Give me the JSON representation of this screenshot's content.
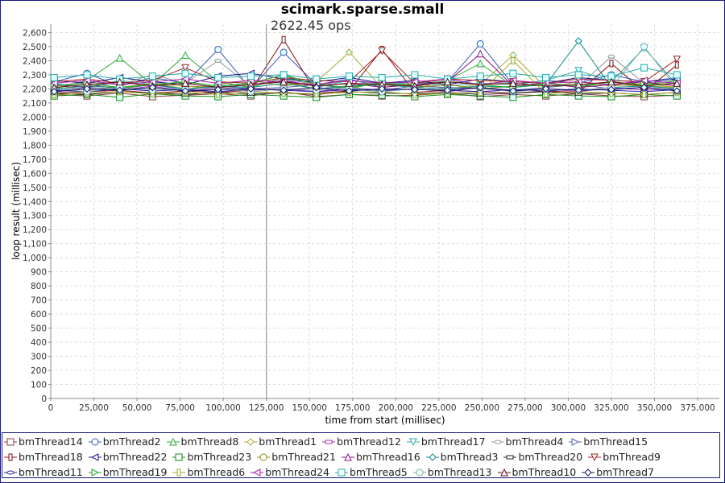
{
  "chart_data": {
    "type": "line",
    "title": "scimark.sparse.small",
    "xlabel": "time from start (millisec)",
    "ylabel": "loop result (millisec)",
    "xlim": [
      0,
      387600
    ],
    "ylim": [
      0,
      2660
    ],
    "xticks": [
      0,
      25000,
      50000,
      75000,
      100000,
      125000,
      150000,
      175000,
      200000,
      225000,
      250000,
      275000,
      300000,
      325000,
      350000,
      375000
    ],
    "yticks": [
      0,
      100,
      200,
      300,
      400,
      500,
      600,
      700,
      800,
      900,
      1000,
      1100,
      1200,
      1300,
      1400,
      1500,
      1600,
      1700,
      1800,
      1900,
      2000,
      2100,
      2200,
      2300,
      2400,
      2500,
      2600
    ],
    "grid": true,
    "legend": "bottom",
    "marker_line": {
      "x": 125000,
      "label": "2622.45 ops"
    },
    "marker_fill": "#e0ffff",
    "x": [
      2000,
      21000,
      40000,
      59000,
      78000,
      97000,
      116000,
      135000,
      154000,
      173000,
      192000,
      211000,
      230000,
      249000,
      268000,
      287000,
      306000,
      325000,
      344000,
      363000
    ],
    "series": [
      {
        "name": "bmThread14",
        "color": "#8b3a3a",
        "values": [
          2160,
          2150,
          2170,
          2145,
          2155,
          2165,
          2150,
          2180,
          2145,
          2160,
          2150,
          2155,
          2170,
          2145,
          2160,
          2150,
          2165,
          2150,
          2145,
          2155
        ]
      },
      {
        "name": "bmThread2",
        "color": "#3355bb",
        "values": [
          2250,
          2310,
          2220,
          2280,
          2240,
          2480,
          2200,
          2460,
          2230,
          2270,
          2210,
          2240,
          2250,
          2520,
          2230,
          2260,
          2240,
          2300,
          2250,
          2280
        ]
      },
      {
        "name": "bmThread8",
        "color": "#33aa33",
        "values": [
          2200,
          2260,
          2420,
          2230,
          2440,
          2250,
          2210,
          2280,
          2240,
          2200,
          2250,
          2230,
          2260,
          2380,
          2220,
          2240,
          2210,
          2250,
          2230,
          2260
        ]
      },
      {
        "name": "bmThread1",
        "color": "#aaaa33",
        "values": [
          2230,
          2190,
          2210,
          2240,
          2200,
          2230,
          2260,
          2220,
          2250,
          2460,
          2210,
          2240,
          2200,
          2230,
          2440,
          2210,
          2250,
          2220,
          2240,
          2210
        ]
      },
      {
        "name": "bmThread12",
        "color": "#aa33aa",
        "values": [
          2180,
          2200,
          2190,
          2220,
          2180,
          2210,
          2190,
          2200,
          2180,
          2210,
          2190,
          2200,
          2180,
          2210,
          2190,
          2200,
          2180,
          2210,
          2190,
          2200
        ]
      },
      {
        "name": "bmThread17",
        "color": "#33aaaa",
        "values": [
          2240,
          2210,
          2260,
          2230,
          2250,
          2220,
          2240,
          2300,
          2210,
          2260,
          2230,
          2250,
          2220,
          2240,
          2230,
          2260,
          2330,
          2250,
          2490,
          2230
        ]
      },
      {
        "name": "bmThread4",
        "color": "#999999",
        "values": [
          2220,
          2250,
          2230,
          2300,
          2240,
          2400,
          2220,
          2260,
          2240,
          2230,
          2250,
          2220,
          2260,
          2230,
          2250,
          2240,
          2220,
          2430,
          2240,
          2250
        ]
      },
      {
        "name": "bmThread15",
        "color": "#5566aa",
        "values": [
          2190,
          2210,
          2200,
          2230,
          2190,
          2220,
          2200,
          2210,
          2230,
          2200,
          2190,
          2220,
          2210,
          2200,
          2190,
          2210,
          2230,
          2200,
          2210,
          2190
        ]
      },
      {
        "name": "bmThread18",
        "color": "#881111",
        "values": [
          2170,
          2180,
          2190,
          2170,
          2185,
          2175,
          2190,
          2550,
          2170,
          2185,
          2480,
          2175,
          2190,
          2180,
          2170,
          2185,
          2175,
          2380,
          2180,
          2370
        ]
      },
      {
        "name": "bmThread22",
        "color": "#111188",
        "values": [
          2260,
          2240,
          2280,
          2250,
          2230,
          2290,
          2310,
          2270,
          2250,
          2280,
          2240,
          2260,
          2230,
          2270,
          2250,
          2240,
          2280,
          2260,
          2250,
          2270
        ]
      },
      {
        "name": "bmThread23",
        "color": "#118811",
        "values": [
          2150,
          2160,
          2140,
          2165,
          2150,
          2145,
          2160,
          2150,
          2140,
          2160,
          2155,
          2145,
          2160,
          2150,
          2140,
          2160,
          2150,
          2145,
          2160,
          2150
        ]
      },
      {
        "name": "bmThread21",
        "color": "#888811",
        "values": [
          2210,
          2230,
          2200,
          2240,
          2220,
          2210,
          2230,
          2250,
          2200,
          2220,
          2240,
          2210,
          2230,
          2200,
          2220,
          2240,
          2210,
          2230,
          2220,
          2210
        ]
      },
      {
        "name": "bmThread16",
        "color": "#881188",
        "values": [
          2230,
          2210,
          2250,
          2220,
          2240,
          2210,
          2230,
          2260,
          2220,
          2240,
          2210,
          2230,
          2250,
          2450,
          2220,
          2240,
          2210,
          2230,
          2250,
          2220
        ]
      },
      {
        "name": "bmThread3",
        "color": "#118888",
        "values": [
          2200,
          2220,
          2210,
          2230,
          2200,
          2220,
          2210,
          2240,
          2200,
          2220,
          2230,
          2210,
          2200,
          2220,
          2210,
          2230,
          2540,
          2210,
          2220,
          2200
        ]
      },
      {
        "name": "bmThread20",
        "color": "#222222",
        "values": [
          2170,
          2160,
          2180,
          2170,
          2160,
          2175,
          2165,
          2170,
          2160,
          2180,
          2170,
          2165,
          2175,
          2160,
          2170,
          2180,
          2165,
          2170,
          2160,
          2175
        ]
      },
      {
        "name": "bmThread9",
        "color": "#aa2222",
        "values": [
          2250,
          2270,
          2240,
          2260,
          2350,
          2250,
          2240,
          2280,
          2260,
          2250,
          2470,
          2240,
          2270,
          2260,
          2250,
          2240,
          2270,
          2260,
          2250,
          2410
        ]
      },
      {
        "name": "bmThread11",
        "color": "#2222aa",
        "values": [
          2190,
          2180,
          2200,
          2185,
          2195,
          2180,
          2200,
          2190,
          2180,
          2195,
          2185,
          2200,
          2190,
          2180,
          2195,
          2185,
          2200,
          2190,
          2180,
          2195
        ]
      },
      {
        "name": "bmThread19",
        "color": "#22aa22",
        "values": [
          2220,
          2240,
          2210,
          2230,
          2250,
          2220,
          2240,
          2300,
          2230,
          2210,
          2240,
          2220,
          2250,
          2230,
          2210,
          2240,
          2220,
          2250,
          2230,
          2240
        ]
      },
      {
        "name": "bmThread6",
        "color": "#aaaa22",
        "values": [
          2160,
          2170,
          2180,
          2165,
          2175,
          2160,
          2180,
          2170,
          2165,
          2175,
          2180,
          2160,
          2170,
          2175,
          2400,
          2165,
          2180,
          2170,
          2160,
          2175
        ]
      },
      {
        "name": "bmThread24",
        "color": "#aa22aa",
        "values": [
          2240,
          2260,
          2230,
          2250,
          2270,
          2240,
          2260,
          2250,
          2230,
          2260,
          2240,
          2250,
          2270,
          2230,
          2260,
          2240,
          2250,
          2230,
          2260,
          2240
        ]
      },
      {
        "name": "bmThread5",
        "color": "#22aaaa",
        "values": [
          2280,
          2300,
          2270,
          2290,
          2310,
          2280,
          2290,
          2300,
          2270,
          2290,
          2280,
          2300,
          2270,
          2290,
          2310,
          2280,
          2300,
          2290,
          2350,
          2300
        ]
      },
      {
        "name": "bmThread13",
        "color": "#77aaaa",
        "values": [
          2200,
          2180,
          2210,
          2190,
          2200,
          2210,
          2180,
          2200,
          2190,
          2210,
          2180,
          2200,
          2190,
          2210,
          2180,
          2200,
          2190,
          2210,
          2500,
          2200
        ]
      },
      {
        "name": "bmThread10",
        "color": "#661111",
        "values": [
          2210,
          2230,
          2250,
          2220,
          2240,
          2210,
          2230,
          2250,
          2220,
          2240,
          2230,
          2220,
          2250,
          2230,
          2240,
          2220,
          2230,
          2250,
          2220,
          2240
        ]
      },
      {
        "name": "bmThread7",
        "color": "#111166",
        "values": [
          2180,
          2200,
          2190,
          2210,
          2185,
          2195,
          2200,
          2190,
          2210,
          2185,
          2200,
          2195,
          2190,
          2210,
          2185,
          2200,
          2190,
          2195,
          2210,
          2185
        ]
      }
    ]
  }
}
